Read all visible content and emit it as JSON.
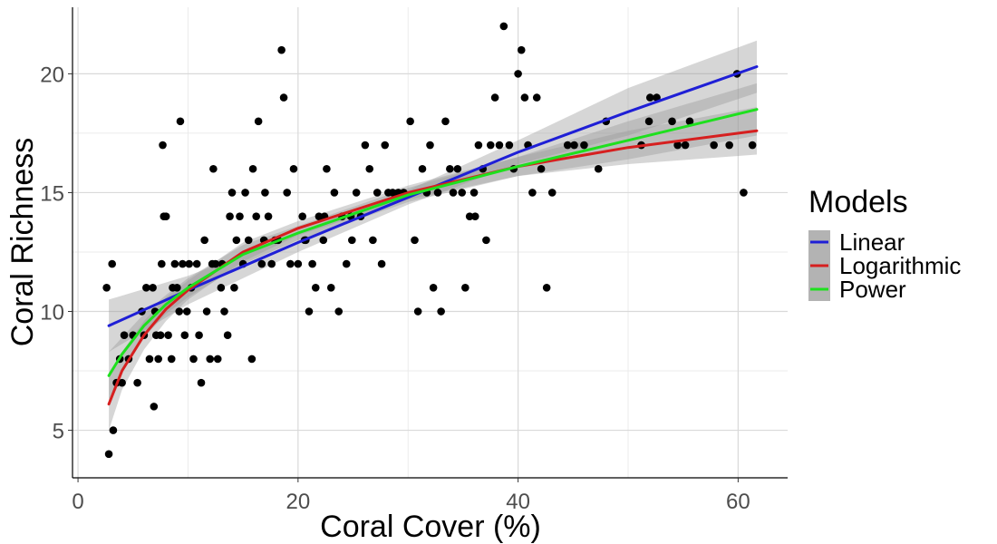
{
  "chart_data": {
    "type": "scatter",
    "title": "",
    "xlabel": "Coral Cover (%)",
    "ylabel": "Coral Richness",
    "xlim": [
      -0.5,
      64.5
    ],
    "ylim": [
      3.0,
      22.8
    ],
    "x_ticks": [
      0,
      20,
      40,
      60
    ],
    "y_ticks": [
      5,
      10,
      15,
      20
    ],
    "grid": true,
    "legend_position": "right",
    "legend": {
      "title": "Models",
      "entries": [
        "Linear",
        "Logarithmic",
        "Power"
      ]
    },
    "points": [
      [
        2.8,
        4
      ],
      [
        3.2,
        5
      ],
      [
        2.6,
        11
      ],
      [
        3.1,
        12
      ],
      [
        3.5,
        7
      ],
      [
        3.8,
        8
      ],
      [
        4.0,
        7
      ],
      [
        4.2,
        9
      ],
      [
        4.6,
        8
      ],
      [
        5.0,
        9
      ],
      [
        5.4,
        7
      ],
      [
        5.8,
        10
      ],
      [
        6.0,
        9
      ],
      [
        6.2,
        11
      ],
      [
        6.5,
        8
      ],
      [
        6.8,
        11
      ],
      [
        6.9,
        6
      ],
      [
        7.0,
        10
      ],
      [
        7.1,
        9
      ],
      [
        7.3,
        8
      ],
      [
        7.5,
        9
      ],
      [
        7.6,
        12
      ],
      [
        7.7,
        17
      ],
      [
        7.8,
        14
      ],
      [
        8.0,
        14
      ],
      [
        8.2,
        9
      ],
      [
        8.5,
        8
      ],
      [
        8.6,
        11
      ],
      [
        8.8,
        12
      ],
      [
        9.0,
        11
      ],
      [
        9.2,
        10
      ],
      [
        9.3,
        18
      ],
      [
        9.5,
        12
      ],
      [
        9.7,
        9
      ],
      [
        9.9,
        10
      ],
      [
        10.1,
        12
      ],
      [
        10.3,
        11
      ],
      [
        10.5,
        8
      ],
      [
        10.8,
        12
      ],
      [
        11.0,
        9
      ],
      [
        11.2,
        7
      ],
      [
        11.5,
        13
      ],
      [
        11.7,
        10
      ],
      [
        12.0,
        8
      ],
      [
        12.3,
        16
      ],
      [
        12.5,
        12
      ],
      [
        12.7,
        8
      ],
      [
        13.0,
        11
      ],
      [
        13.3,
        10
      ],
      [
        13.6,
        9
      ],
      [
        13.8,
        14
      ],
      [
        14.0,
        15
      ],
      [
        14.2,
        11
      ],
      [
        14.4,
        13
      ],
      [
        14.7,
        14
      ],
      [
        15.0,
        12
      ],
      [
        15.2,
        15
      ],
      [
        15.5,
        13
      ],
      [
        15.8,
        8
      ],
      [
        15.9,
        16
      ],
      [
        16.2,
        14
      ],
      [
        16.4,
        18
      ],
      [
        16.7,
        12
      ],
      [
        17.0,
        15
      ],
      [
        17.3,
        14
      ],
      [
        17.6,
        12
      ],
      [
        17.9,
        13
      ],
      [
        18.2,
        13
      ],
      [
        18.5,
        21
      ],
      [
        18.7,
        19
      ],
      [
        19.0,
        15
      ],
      [
        19.3,
        12
      ],
      [
        19.6,
        16
      ],
      [
        20.0,
        12
      ],
      [
        20.4,
        14
      ],
      [
        20.7,
        13
      ],
      [
        21.0,
        10
      ],
      [
        21.3,
        12
      ],
      [
        21.6,
        11
      ],
      [
        21.9,
        14
      ],
      [
        22.3,
        13
      ],
      [
        22.6,
        16
      ],
      [
        23.0,
        11
      ],
      [
        23.3,
        15
      ],
      [
        23.7,
        10
      ],
      [
        24.0,
        14
      ],
      [
        24.4,
        12
      ],
      [
        24.9,
        13
      ],
      [
        25.3,
        15
      ],
      [
        25.7,
        14
      ],
      [
        26.1,
        17
      ],
      [
        26.5,
        16
      ],
      [
        26.8,
        13
      ],
      [
        27.2,
        15
      ],
      [
        27.6,
        12
      ],
      [
        27.9,
        17
      ],
      [
        28.2,
        15
      ],
      [
        28.6,
        15
      ],
      [
        29.1,
        15
      ],
      [
        29.6,
        15
      ],
      [
        30.2,
        18
      ],
      [
        30.6,
        13
      ],
      [
        30.9,
        10
      ],
      [
        31.3,
        16
      ],
      [
        31.7,
        15
      ],
      [
        32.0,
        17
      ],
      [
        32.3,
        11
      ],
      [
        32.7,
        15
      ],
      [
        33.0,
        10
      ],
      [
        33.4,
        18
      ],
      [
        33.8,
        16
      ],
      [
        34.1,
        15
      ],
      [
        34.5,
        16
      ],
      [
        34.9,
        15
      ],
      [
        35.2,
        11
      ],
      [
        35.6,
        14
      ],
      [
        36.0,
        15
      ],
      [
        36.4,
        17
      ],
      [
        36.8,
        16
      ],
      [
        37.1,
        13
      ],
      [
        37.5,
        17
      ],
      [
        37.9,
        19
      ],
      [
        38.3,
        17
      ],
      [
        38.7,
        22
      ],
      [
        39.2,
        17
      ],
      [
        39.6,
        16
      ],
      [
        40.0,
        20
      ],
      [
        40.3,
        21
      ],
      [
        40.6,
        19
      ],
      [
        40.9,
        17
      ],
      [
        41.3,
        15
      ],
      [
        41.7,
        19
      ],
      [
        42.1,
        16
      ],
      [
        42.6,
        11
      ],
      [
        43.1,
        15
      ],
      [
        44.5,
        17
      ],
      [
        45.1,
        17
      ],
      [
        46.0,
        17
      ],
      [
        47.3,
        16
      ],
      [
        48.0,
        18
      ],
      [
        51.2,
        17
      ],
      [
        52.0,
        19
      ],
      [
        52.6,
        19
      ],
      [
        54.0,
        18
      ],
      [
        55.2,
        17
      ],
      [
        55.6,
        18
      ],
      [
        57.8,
        17
      ],
      [
        59.2,
        17
      ],
      [
        59.9,
        20
      ],
      [
        60.5,
        15
      ],
      [
        61.3,
        17
      ],
      [
        54.5,
        17
      ],
      [
        51.9,
        18
      ],
      [
        36.1,
        14
      ],
      [
        24.8,
        14
      ],
      [
        22.4,
        14
      ],
      [
        20.6,
        13
      ],
      [
        16.9,
        13
      ],
      [
        13.1,
        12
      ],
      [
        12.2,
        12
      ]
    ],
    "series": [
      {
        "name": "Linear",
        "color": "#1f1fd6",
        "x": [
          2.8,
          10,
          20,
          30,
          40,
          50,
          61.7
        ],
        "y": [
          9.4,
          10.9,
          12.9,
          14.8,
          16.7,
          18.4,
          20.3
        ],
        "lower": [
          8.3,
          10.3,
          12.5,
          14.5,
          16.2,
          17.4,
          19.2
        ],
        "upper": [
          10.5,
          11.5,
          13.3,
          15.1,
          17.2,
          19.4,
          21.4
        ]
      },
      {
        "name": "Logarithmic",
        "color": "#d61f1f",
        "x": [
          2.8,
          4,
          6,
          8,
          10,
          15,
          20,
          30,
          40,
          50,
          61.7
        ],
        "y": [
          6.1,
          7.5,
          9.0,
          10.1,
          10.9,
          12.5,
          13.5,
          15.0,
          16.1,
          16.9,
          17.6
        ],
        "lower": [
          5.0,
          6.7,
          8.4,
          9.6,
          10.5,
          12.1,
          13.2,
          14.7,
          15.7,
          16.2,
          16.6
        ],
        "upper": [
          7.2,
          8.3,
          9.6,
          10.6,
          11.3,
          12.9,
          13.8,
          15.3,
          16.5,
          17.6,
          18.6
        ]
      },
      {
        "name": "Power",
        "color": "#1ee01e",
        "x": [
          2.8,
          4,
          6,
          8,
          10,
          15,
          20,
          30,
          40,
          50,
          61.7
        ],
        "y": [
          7.3,
          8.2,
          9.4,
          10.3,
          11.0,
          12.4,
          13.3,
          14.9,
          16.1,
          17.2,
          18.5
        ],
        "lower": [
          6.3,
          7.5,
          8.9,
          9.9,
          10.6,
          12.0,
          13.0,
          14.6,
          15.7,
          16.4,
          17.4
        ],
        "upper": [
          8.3,
          8.9,
          9.9,
          10.7,
          11.4,
          12.8,
          13.6,
          15.2,
          16.5,
          18.0,
          19.6
        ]
      }
    ]
  }
}
